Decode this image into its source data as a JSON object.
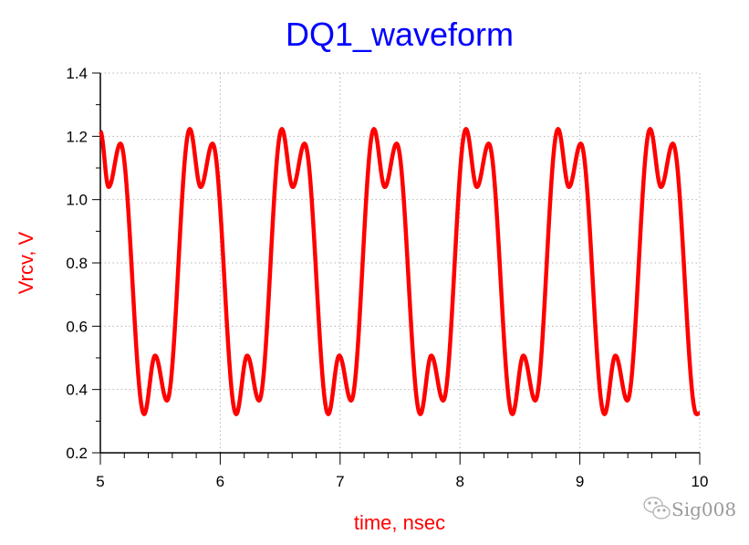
{
  "chart_data": {
    "type": "line",
    "title": "DQ1_waveform",
    "xlabel": "time, nsec",
    "ylabel": "Vrcv, V",
    "xlim": [
      5,
      10
    ],
    "ylim": [
      0.2,
      1.4
    ],
    "xticks": [
      5,
      6,
      7,
      8,
      9,
      10
    ],
    "xtick_labels": [
      "5",
      "6",
      "7",
      "8",
      "9",
      "10"
    ],
    "yticks": [
      0.2,
      0.4,
      0.6,
      0.8,
      1.0,
      1.2,
      1.4
    ],
    "ytick_labels": [
      "0.2",
      "0.4",
      "0.6",
      "0.8",
      "1.0",
      "1.2",
      "1.4"
    ],
    "grid": true,
    "series": [
      {
        "name": "Vrcv",
        "color": "#ff0000",
        "x": [
          5.0,
          5.069,
          5.168,
          5.365,
          5.457,
          5.556,
          5.746,
          5.837,
          5.936,
          6.133,
          6.225,
          6.324,
          6.514,
          6.605,
          6.704,
          6.901,
          6.993,
          7.092,
          7.282,
          7.373,
          7.472,
          7.669,
          7.761,
          7.86,
          8.05,
          8.141,
          8.24,
          8.437,
          8.529,
          8.628,
          8.818,
          8.909,
          9.008,
          9.205,
          9.297,
          9.396,
          9.586,
          9.677,
          9.776,
          9.973,
          10.0
        ],
        "y": [
          1.215,
          1.04,
          1.177,
          0.322,
          0.507,
          0.365,
          1.223,
          1.04,
          1.177,
          0.322,
          0.507,
          0.365,
          1.223,
          1.04,
          1.177,
          0.322,
          0.507,
          0.365,
          1.223,
          1.04,
          1.177,
          0.322,
          0.507,
          0.365,
          1.223,
          1.04,
          1.177,
          0.322,
          0.507,
          0.365,
          1.223,
          1.04,
          1.177,
          0.322,
          0.507,
          0.365,
          1.223,
          1.04,
          1.177,
          0.322,
          0.325
        ]
      }
    ]
  },
  "watermark": {
    "text": "Sig008",
    "icon": "wechat-icon"
  }
}
